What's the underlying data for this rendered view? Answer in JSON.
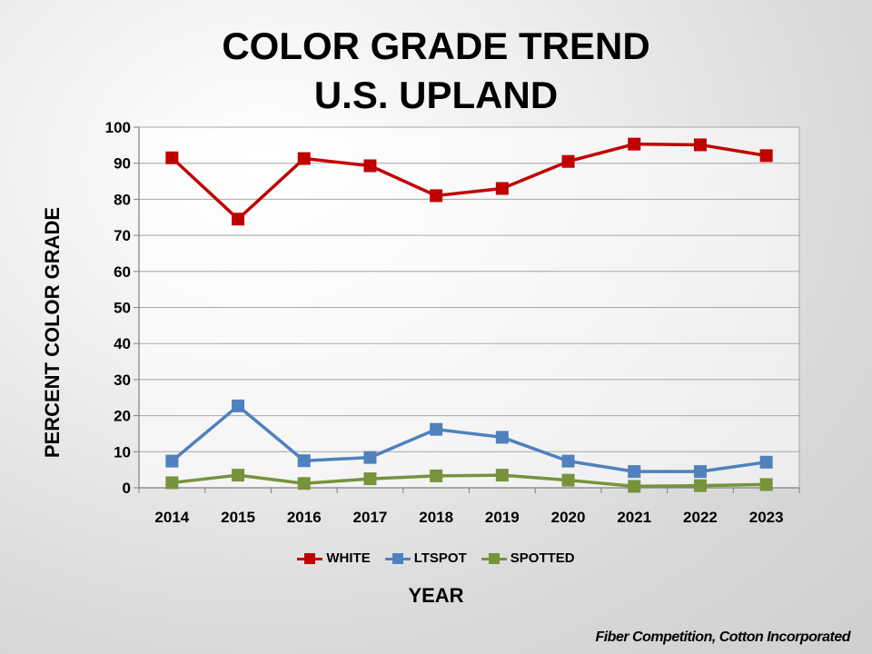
{
  "chart_data": {
    "type": "line",
    "title_line1": "COLOR GRADE TREND",
    "title_line2": "U.S. UPLAND",
    "xlabel": "YEAR",
    "ylabel": "PERCENT COLOR GRADE",
    "ylim": [
      0,
      100
    ],
    "yticks": [
      0,
      10,
      20,
      30,
      40,
      50,
      60,
      70,
      80,
      90,
      100
    ],
    "categories": [
      "2014",
      "2015",
      "2016",
      "2017",
      "2018",
      "2019",
      "2020",
      "2021",
      "2022",
      "2023"
    ],
    "series": [
      {
        "name": "WHITE",
        "color": "#C00000",
        "values": [
          91.5,
          74.5,
          91.3,
          89.3,
          81.0,
          83.0,
          90.5,
          95.3,
          95.1,
          92.1
        ]
      },
      {
        "name": "LTSPOT",
        "color": "#4F81BD",
        "values": [
          7.4,
          22.7,
          7.5,
          8.4,
          16.2,
          14.0,
          7.4,
          4.5,
          4.5,
          7.1
        ]
      },
      {
        "name": "SPOTTED",
        "color": "#77933C",
        "values": [
          1.4,
          3.5,
          1.2,
          2.5,
          3.3,
          3.5,
          2.1,
          0.4,
          0.6,
          0.9
        ]
      }
    ],
    "legend_position": "bottom",
    "grid": true
  },
  "source": "Fiber Competition, Cotton Incorporated"
}
